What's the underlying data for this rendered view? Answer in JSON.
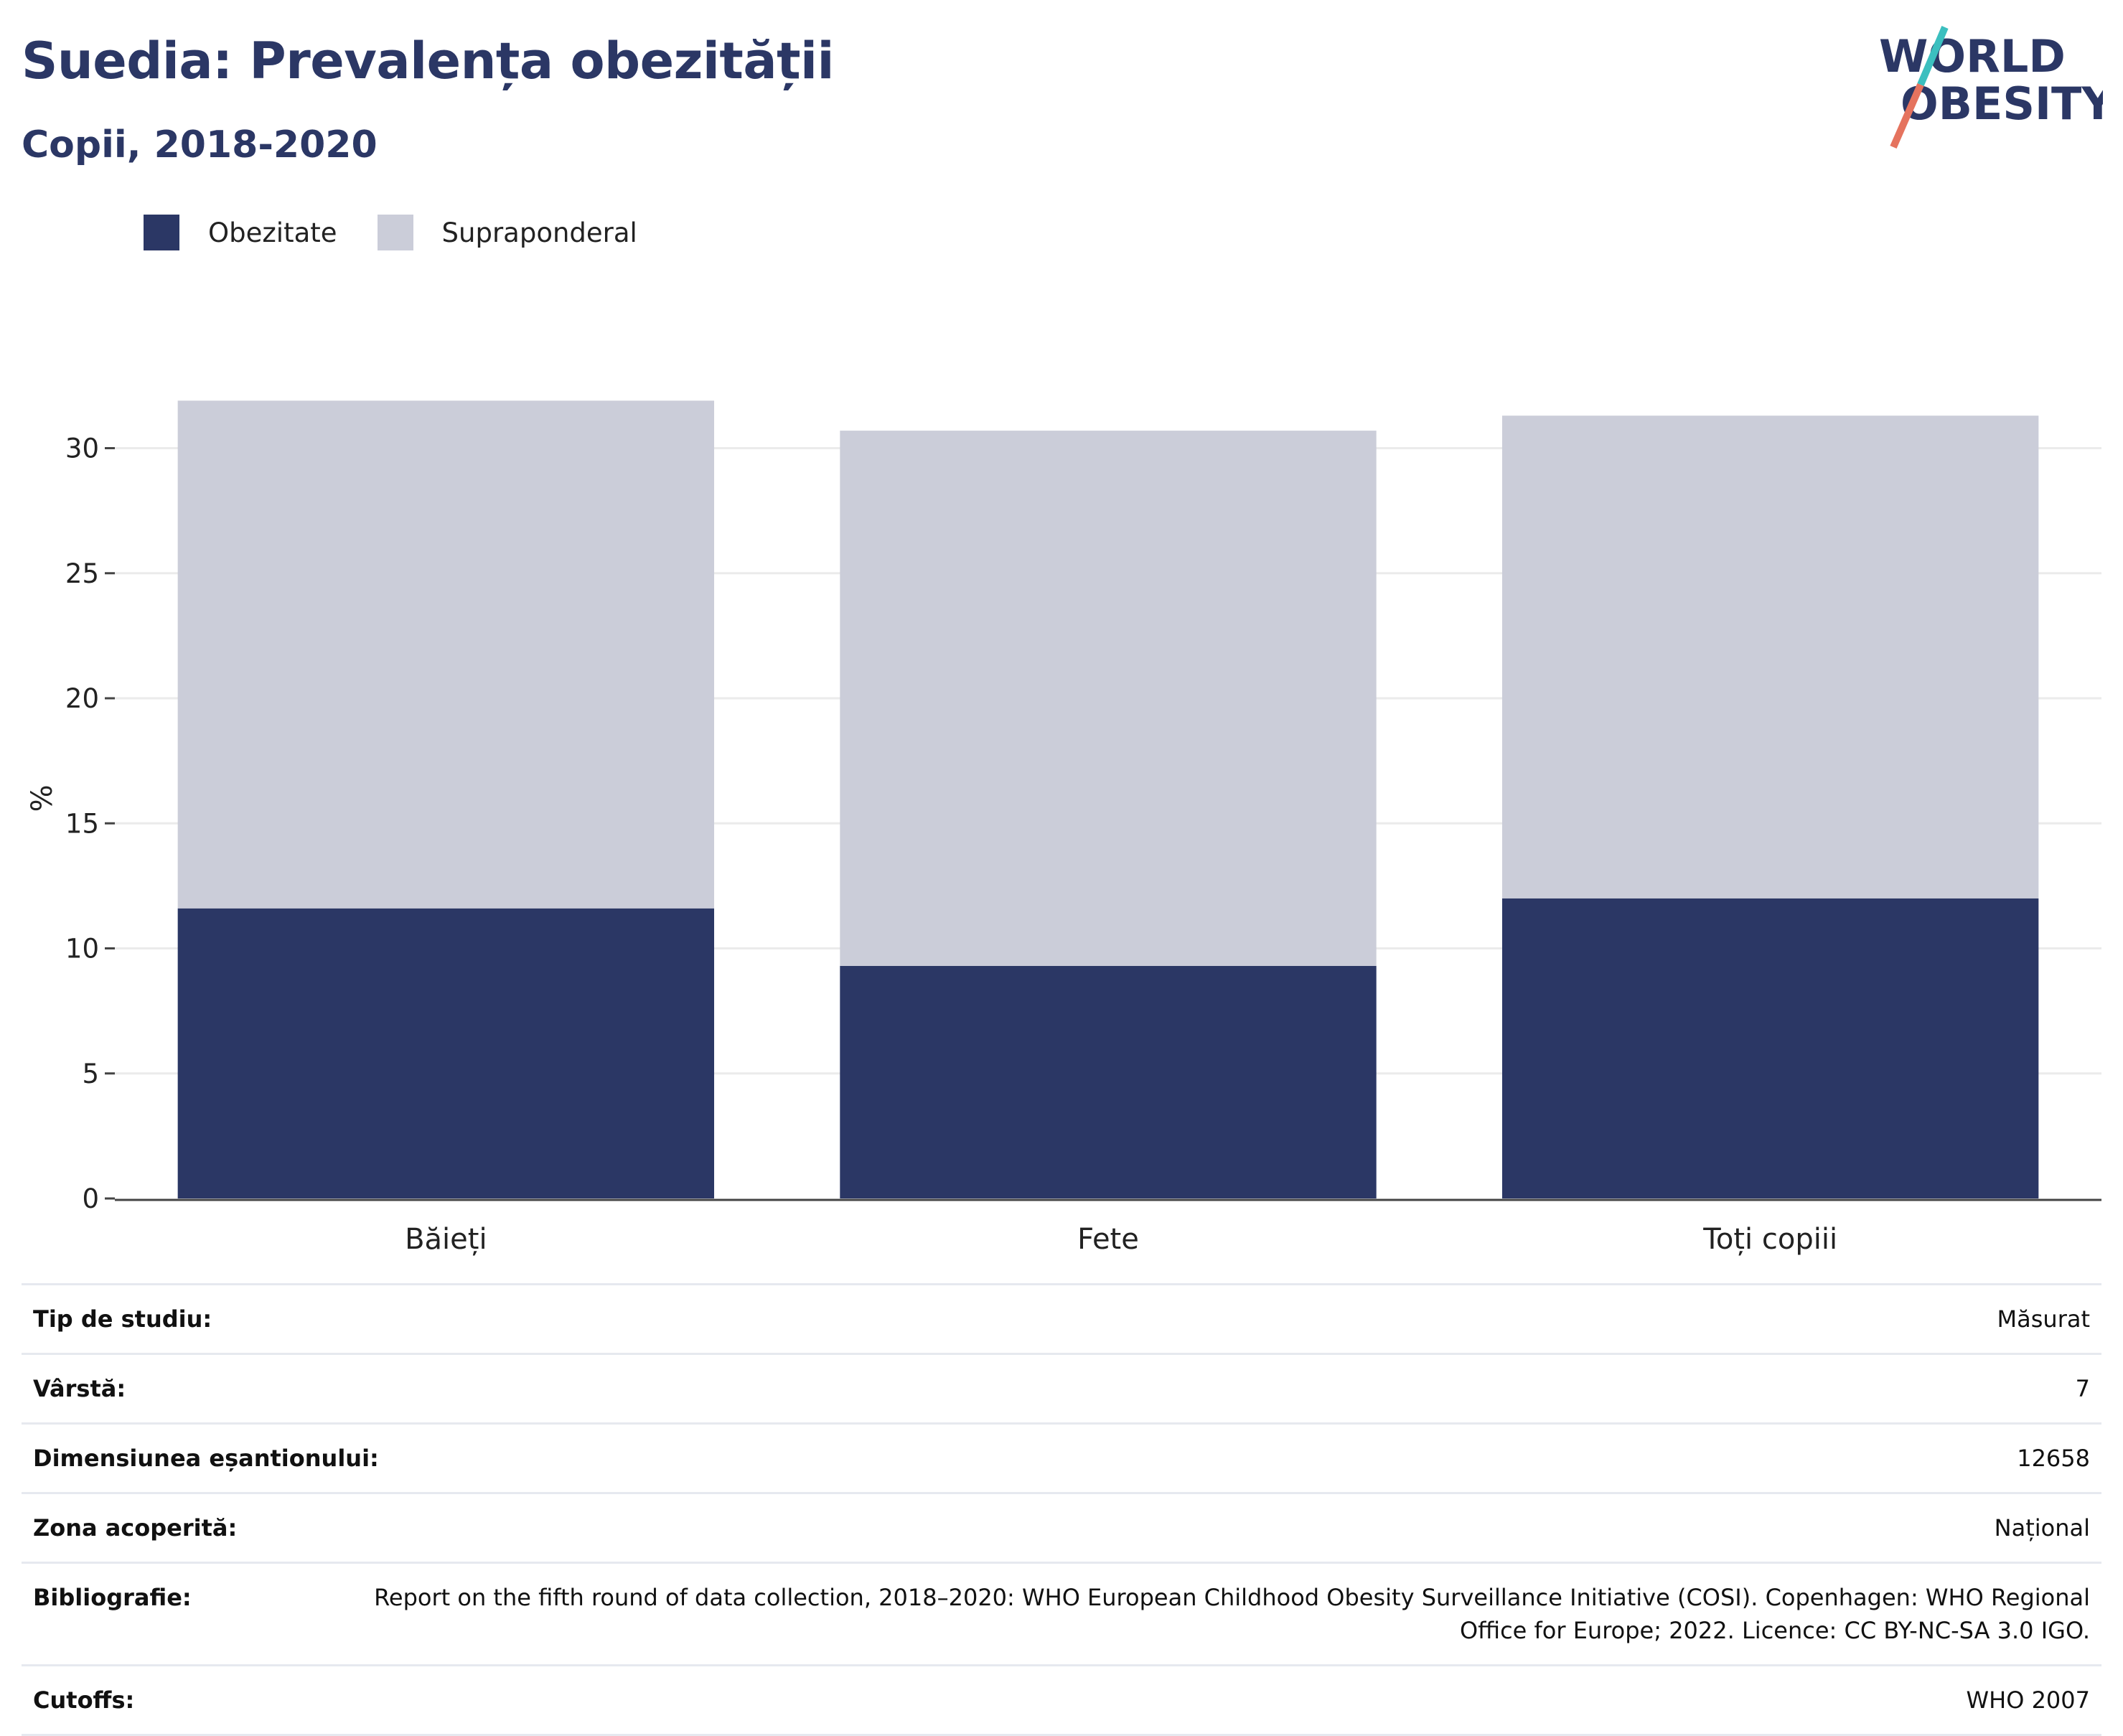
{
  "header": {
    "title": "Suedia: Prevalența obezității",
    "subtitle": "Copii, 2018-2020"
  },
  "logo": {
    "line1": "WORLD",
    "line2": "OBESITY",
    "colors": {
      "text": "#2b3765",
      "slash_top": "#3bbfbf",
      "slash_bottom": "#e5735e"
    }
  },
  "legend": [
    {
      "label": "Obezitate",
      "color": "#2b3765"
    },
    {
      "label": "Supraponderal",
      "color": "#cbcdd9"
    }
  ],
  "chart_data": {
    "type": "bar",
    "stacked": true,
    "categories": [
      "Băieți",
      "Fete",
      "Toți copiii"
    ],
    "series": [
      {
        "name": "Obezitate",
        "color": "#2b3765",
        "values": [
          11.6,
          9.3,
          12.0
        ]
      },
      {
        "name": "Supraponderal",
        "color": "#cbcdd9",
        "values": [
          20.3,
          21.4,
          19.3
        ]
      }
    ],
    "ylabel": "%",
    "xlabel": "",
    "ylim": [
      0,
      32
    ],
    "yticks": [
      0,
      5,
      10,
      15,
      20,
      25,
      30
    ],
    "grid": true
  },
  "info": [
    {
      "label": "Tip de studiu:",
      "value": "Măsurat"
    },
    {
      "label": "Vârstă:",
      "value": "7"
    },
    {
      "label": "Dimensiunea eșantionului:",
      "value": "12658"
    },
    {
      "label": "Zona acoperită:",
      "value": "Național"
    },
    {
      "label": "Bibliografie:",
      "value": "Report on the fifth round of data collection, 2018–2020: WHO European Childhood Obesity Surveillance Initiative (COSI). Copenhagen: WHO Regional Office for Europe; 2022. Licence: CC BY-NC-SA 3.0 IGO."
    },
    {
      "label": "Cutoffs:",
      "value": "WHO 2007"
    }
  ]
}
